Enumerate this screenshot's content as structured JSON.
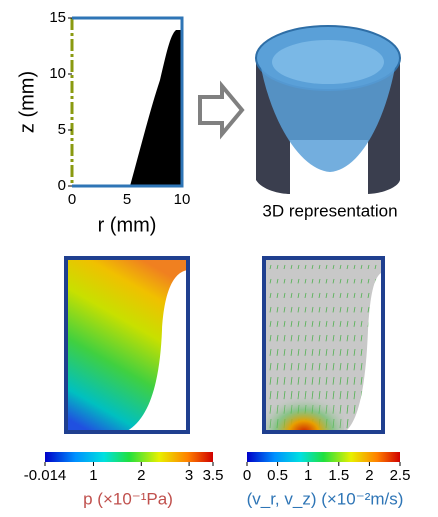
{
  "profile_plot": {
    "y_label": "z (mm)",
    "x_label": "r (mm)",
    "yticks": [
      0,
      5,
      10,
      15
    ],
    "xticks": [
      0,
      5,
      10
    ]
  },
  "render_label": "3D representation",
  "colorbars": [
    {
      "label": "p (×10⁻¹Pa)",
      "ticks": [
        -0.014,
        1,
        2,
        3,
        3.5
      ]
    },
    {
      "label": "(v_r, v_z) (×10⁻²m/s)",
      "ticks": [
        0,
        0.5,
        1,
        1.5,
        2,
        2.5
      ]
    }
  ]
}
